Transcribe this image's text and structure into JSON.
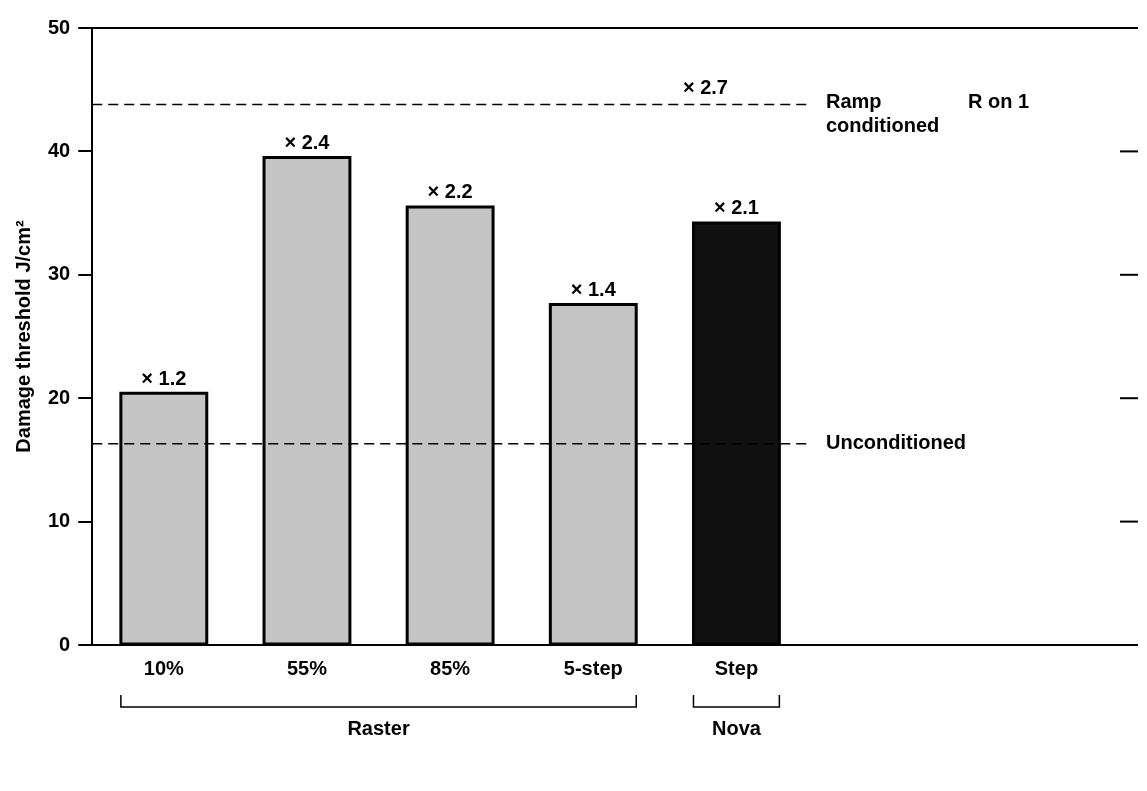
{
  "chart_data": {
    "type": "bar",
    "ylabel": "Damage threshold J/cm²",
    "categories": [
      "10%",
      "55%",
      "85%",
      "5-step",
      "Step"
    ],
    "values": [
      20.4,
      39.5,
      35.5,
      27.6,
      34.2
    ],
    "colors": [
      "#c4c4c4",
      "#c4c4c4",
      "#c4c4c4",
      "#c4c4c4",
      "#111111"
    ],
    "ylim": [
      0,
      50
    ],
    "yticks": [
      0,
      10,
      20,
      30,
      40,
      50
    ],
    "grid": false,
    "legend": false,
    "ref_lines": [
      {
        "axis": "y",
        "value": 43.8,
        "label": "Ramp conditioned",
        "color": "#000000",
        "line_style": "dashed"
      },
      {
        "axis": "y",
        "value": 16.3,
        "label": "Unconditioned",
        "color": "#000000",
        "line_style": "dashed"
      }
    ],
    "annotations": [
      {
        "text": "× 2.7",
        "y": 43.8
      },
      "R on 1",
      "Raster",
      "Nova",
      {
        "text": "× 1.2",
        "x": "10%",
        "y": 20.4
      },
      {
        "text": "× 2.4",
        "x": "55%",
        "y": 39.5
      },
      {
        "text": "× 2.2",
        "x": "85%",
        "y": 35.5
      },
      {
        "text": "× 1.4",
        "x": "5-step",
        "y": 27.6
      },
      {
        "text": "× 2.1",
        "x": "Step",
        "y": 34.2
      }
    ]
  }
}
